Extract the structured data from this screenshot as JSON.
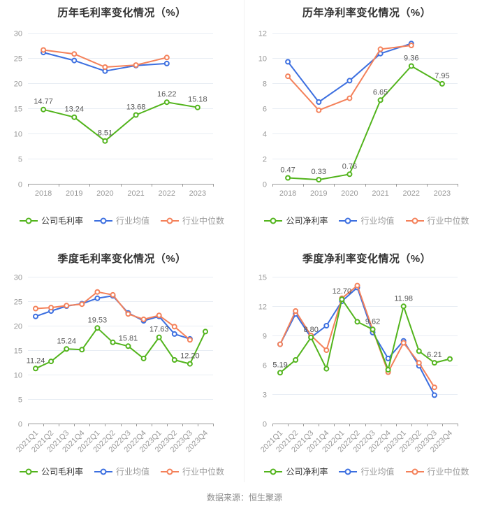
{
  "footer": {
    "source_label": "数据来源：恒生聚源"
  },
  "palette": {
    "company_green": "#52b41c",
    "industry_mean_blue": "#3c6fe0",
    "industry_median_orange": "#f4815a",
    "grid_line": "#e8edf4",
    "axis_line": "#999999",
    "tick_text": "#999999",
    "point_label_text": "#555555",
    "title_text": "#333333"
  },
  "chart_data": [
    {
      "id": "annual-gross-margin",
      "type": "line",
      "title": "历年毛利率变化情况（%）",
      "categories": [
        "2018",
        "2019",
        "2020",
        "2021",
        "2022",
        "2023"
      ],
      "y_ticks": [
        0,
        5,
        10,
        15,
        20,
        25,
        30
      ],
      "ylim": [
        0,
        30
      ],
      "grid": true,
      "legend_position": "bottom",
      "x_labels_rotated": false,
      "series": [
        {
          "name": "公司毛利率",
          "color": "#52b41c",
          "values": [
            14.77,
            13.24,
            8.51,
            13.68,
            16.22,
            15.18
          ],
          "point_labels": [
            "14.77",
            "13.24",
            "8.51",
            "13.68",
            "16.22",
            "15.18"
          ]
        },
        {
          "name": "行业均值",
          "color": "#3c6fe0",
          "values": [
            26.1,
            24.5,
            22.4,
            23.5,
            23.9,
            null
          ]
        },
        {
          "name": "行业中位数",
          "color": "#f4815a",
          "values": [
            26.6,
            25.8,
            23.2,
            23.6,
            25.1,
            null
          ]
        }
      ]
    },
    {
      "id": "annual-net-margin",
      "type": "line",
      "title": "历年净利率变化情况（%）",
      "categories": [
        "2018",
        "2019",
        "2020",
        "2021",
        "2022",
        "2023"
      ],
      "y_ticks": [
        0,
        2,
        4,
        6,
        8,
        10,
        12
      ],
      "ylim": [
        0,
        12
      ],
      "grid": true,
      "legend_position": "bottom",
      "x_labels_rotated": false,
      "series": [
        {
          "name": "公司净利率",
          "color": "#52b41c",
          "values": [
            0.47,
            0.33,
            0.76,
            6.65,
            9.36,
            7.95
          ],
          "point_labels": [
            "0.47",
            "0.33",
            "0.76",
            "6.65",
            "9.36",
            "7.95"
          ]
        },
        {
          "name": "行业均值",
          "color": "#3c6fe0",
          "values": [
            9.7,
            6.5,
            8.2,
            10.35,
            11.15,
            null
          ]
        },
        {
          "name": "行业中位数",
          "color": "#f4815a",
          "values": [
            8.55,
            5.85,
            6.8,
            10.7,
            11.0,
            null
          ]
        }
      ]
    },
    {
      "id": "quarterly-gross-margin",
      "type": "line",
      "title": "季度毛利率变化情况（%）",
      "categories": [
        "2021Q1",
        "2021Q2",
        "2021Q3",
        "2021Q4",
        "2022Q1",
        "2022Q2",
        "2022Q3",
        "2022Q4",
        "2023Q1",
        "2023Q2",
        "2023Q3",
        "2023Q4"
      ],
      "y_ticks": [
        0,
        5,
        10,
        15,
        20,
        25,
        30
      ],
      "ylim": [
        0,
        30
      ],
      "grid": true,
      "legend_position": "bottom",
      "x_labels_rotated": true,
      "series": [
        {
          "name": "公司毛利率",
          "color": "#52b41c",
          "values": [
            11.24,
            12.7,
            15.24,
            15.1,
            19.53,
            16.6,
            15.81,
            13.3,
            17.63,
            13.0,
            12.2,
            18.8
          ],
          "point_labels": [
            "11.24",
            null,
            "15.24",
            null,
            "19.53",
            null,
            "15.81",
            null,
            "17.63",
            null,
            "12.20",
            null
          ]
        },
        {
          "name": "行业均值",
          "color": "#3c6fe0",
          "values": [
            21.9,
            23.0,
            24.0,
            24.5,
            25.6,
            26.1,
            22.6,
            21.0,
            21.9,
            18.3,
            17.3,
            null
          ]
        },
        {
          "name": "行业中位数",
          "color": "#f4815a",
          "values": [
            23.5,
            23.7,
            24.1,
            24.4,
            26.9,
            26.3,
            22.4,
            21.3,
            22.1,
            19.8,
            17.1,
            null
          ]
        }
      ]
    },
    {
      "id": "quarterly-net-margin",
      "type": "line",
      "title": "季度净利率变化情况（%）",
      "categories": [
        "2021Q1",
        "2021Q2",
        "2021Q3",
        "2021Q4",
        "2022Q1",
        "2022Q2",
        "2022Q3",
        "2022Q4",
        "2023Q1",
        "2023Q2",
        "2023Q3",
        "2023Q4"
      ],
      "y_ticks": [
        0,
        3,
        6,
        9,
        12,
        15
      ],
      "ylim": [
        0,
        15
      ],
      "grid": true,
      "legend_position": "bottom",
      "x_labels_rotated": true,
      "series": [
        {
          "name": "公司净利率",
          "color": "#52b41c",
          "values": [
            5.19,
            6.5,
            8.8,
            5.6,
            12.7,
            10.4,
            9.62,
            5.5,
            11.98,
            7.4,
            6.21,
            6.6
          ],
          "point_labels": [
            "5.19",
            null,
            "8.80",
            null,
            "12.70",
            null,
            "9.62",
            null,
            "11.98",
            null,
            "6.21",
            null
          ]
        },
        {
          "name": "行业均值",
          "color": "#3c6fe0",
          "values": [
            8.1,
            11.2,
            8.8,
            10.0,
            12.5,
            13.9,
            9.3,
            6.65,
            8.45,
            5.9,
            2.9,
            null
          ]
        },
        {
          "name": "行业中位数",
          "color": "#f4815a",
          "values": [
            8.1,
            11.5,
            9.0,
            7.5,
            12.8,
            14.1,
            9.6,
            5.25,
            8.25,
            6.2,
            3.7,
            null
          ]
        }
      ]
    }
  ]
}
